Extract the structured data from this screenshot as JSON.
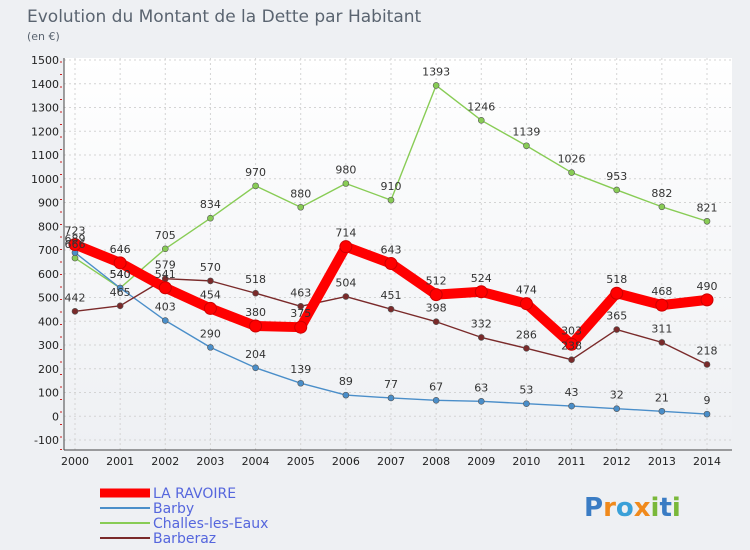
{
  "chart_data": {
    "type": "line",
    "title": "Evolution du Montant de la Dette par Habitant",
    "subtitle": "(en €)",
    "x": [
      "2000",
      "2001",
      "2002",
      "2003",
      "2004",
      "2005",
      "2006",
      "2007",
      "2008",
      "2009",
      "2010",
      "2011",
      "2012",
      "2013",
      "2014"
    ],
    "ylim": [
      -100,
      1500
    ],
    "yticks": [
      -100,
      0,
      100,
      200,
      300,
      400,
      500,
      600,
      700,
      800,
      900,
      1000,
      1100,
      1200,
      1300,
      1400,
      1500
    ],
    "grid": true,
    "legend_position": "bottom-left",
    "series": [
      {
        "name": "LA RAVOIRE",
        "color": "#ff0000",
        "values": [
          723,
          646,
          541,
          454,
          380,
          375,
          714,
          643,
          512,
          524,
          474,
          303,
          518,
          468,
          490
        ]
      },
      {
        "name": "Barby",
        "color": "#4a8ec9",
        "values": [
          689,
          540,
          403,
          290,
          204,
          139,
          89,
          77,
          67,
          63,
          53,
          43,
          32,
          21,
          9
        ]
      },
      {
        "name": "Challes-les-Eaux",
        "color": "#88cc55",
        "values": [
          666,
          540,
          705,
          834,
          970,
          880,
          980,
          910,
          1393,
          1246,
          1139,
          1026,
          953,
          882,
          821
        ]
      },
      {
        "name": "Barberaz",
        "color": "#7a2a2a",
        "values": [
          442,
          465,
          579,
          570,
          518,
          463,
          504,
          451,
          398,
          332,
          286,
          238,
          365,
          311,
          218
        ]
      }
    ]
  },
  "brand": {
    "text": "Proxiti"
  }
}
